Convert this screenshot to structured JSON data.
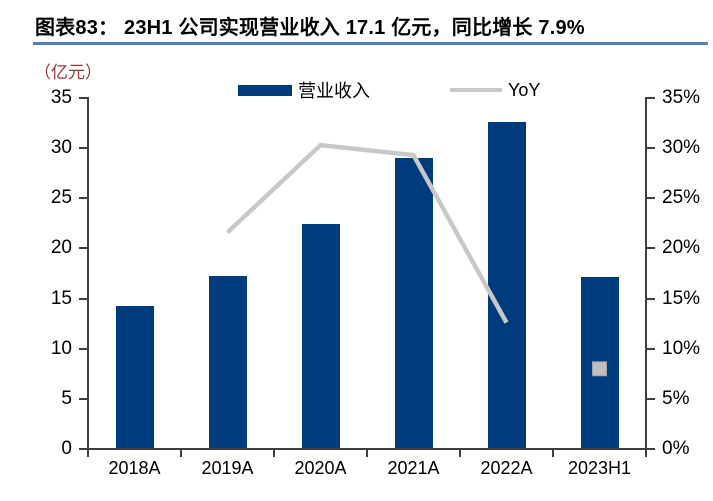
{
  "header": {
    "title": "图表83： 23H1 公司实现营业收入 17.1 亿元，同比增长 7.9%"
  },
  "chart_data": {
    "type": "bar",
    "title": "23H1 公司实现营业收入 17.1 亿元，同比增长 7.9%",
    "figure_label": "图表83：",
    "unit_label": "（亿元）",
    "categories": [
      "2018A",
      "2019A",
      "2020A",
      "2021A",
      "2022A",
      "2023H1"
    ],
    "series": [
      {
        "name": "营业收入",
        "type": "bar",
        "axis": "left",
        "values": [
          14.2,
          17.2,
          22.3,
          28.9,
          32.5,
          17.1
        ]
      },
      {
        "name": "YoY",
        "type": "line",
        "axis": "right",
        "values": [
          null,
          21.5,
          30.2,
          29.2,
          12.5,
          7.9
        ],
        "line_segment_indices": [
          1,
          2,
          3,
          4
        ],
        "marker_only_indices": [
          5
        ]
      }
    ],
    "left_axis": {
      "min": 0,
      "max": 35,
      "step": 5,
      "tick_labels": [
        "0",
        "5",
        "10",
        "15",
        "20",
        "25",
        "30",
        "35"
      ]
    },
    "right_axis": {
      "min": 0,
      "max": 35,
      "step": 5,
      "tick_labels": [
        "0%",
        "5%",
        "10%",
        "15%",
        "20%",
        "25%",
        "30%",
        "35%"
      ]
    },
    "legend": [
      {
        "label": "营业收入",
        "swatch": "bar"
      },
      {
        "label": "YoY",
        "swatch": "line"
      }
    ],
    "legend_position": "top-center",
    "grid": false,
    "colors": {
      "bar": "#003b7d",
      "line": "#c8c8c8",
      "marker_fill": "#bfbfbf",
      "marker_border": "#a0a0a0",
      "axis": "#404040",
      "title_underline": "#4f81bd",
      "unit_label": "#953735"
    }
  }
}
